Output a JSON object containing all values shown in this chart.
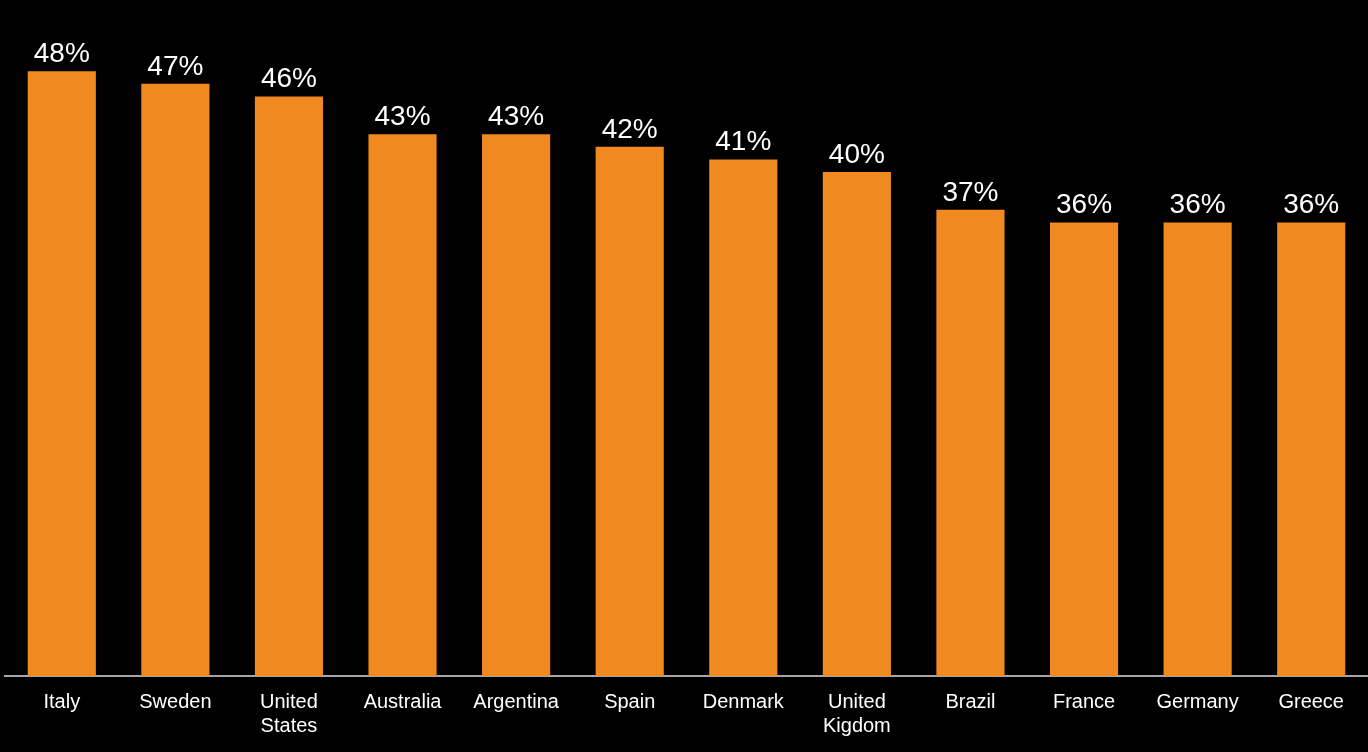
{
  "chart_data": {
    "type": "bar",
    "categories": [
      "Italy",
      "Sweden",
      "United States",
      "Australia",
      "Argentina",
      "Spain",
      "Denmark",
      "United Kigdom",
      "Brazil",
      "France",
      "Germany",
      "Greece"
    ],
    "values": [
      48,
      47,
      46,
      43,
      43,
      42,
      41,
      40,
      37,
      36,
      36,
      36
    ],
    "value_labels": [
      "48%",
      "47%",
      "46%",
      "43%",
      "43%",
      "42%",
      "41%",
      "40%",
      "37%",
      "36%",
      "36%",
      "36%"
    ],
    "color": "#f0891f",
    "grid": false,
    "legend": false
  }
}
